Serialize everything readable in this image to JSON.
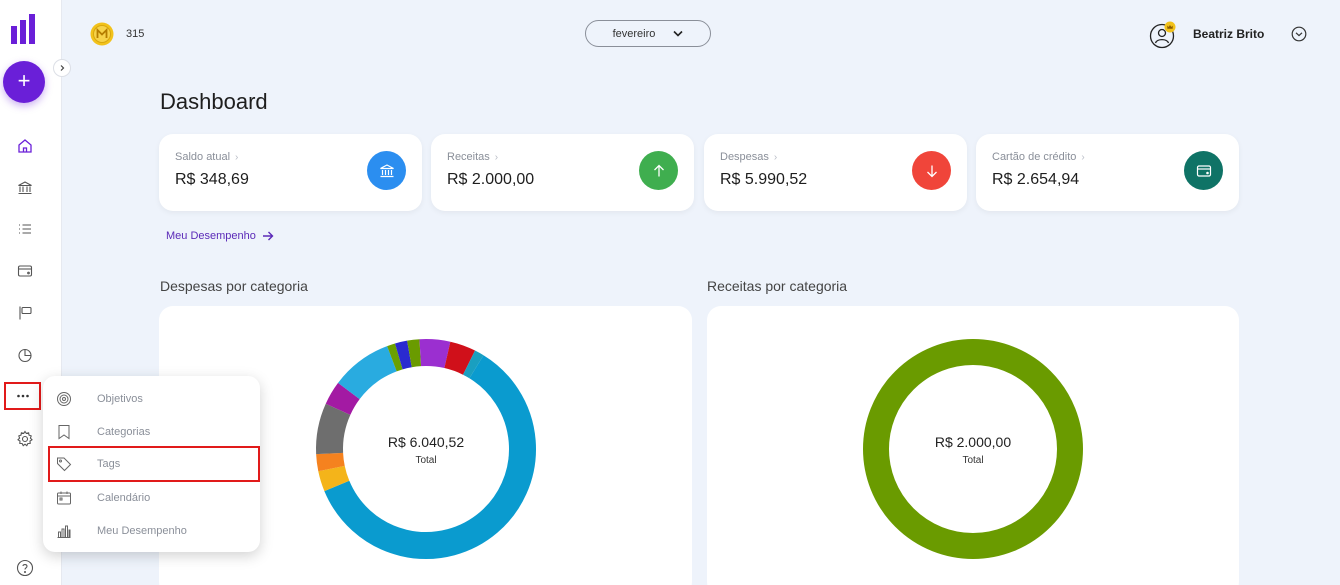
{
  "sidebar": {
    "add_label": "+",
    "nav": [
      "home-icon",
      "bank-icon",
      "list-icon",
      "wallet-icon",
      "flag-icon",
      "pie-chart-icon",
      "more-icon",
      "settings-icon",
      "help-icon"
    ]
  },
  "topbar": {
    "coins": "315",
    "month": "fevereiro",
    "user_name": "Beatriz Brito"
  },
  "page": {
    "title": "Dashboard"
  },
  "cards": [
    {
      "label": "Saldo atual",
      "value": "R$ 348,69",
      "color": "#2b8ef0",
      "icon": "bank-icon"
    },
    {
      "label": "Receitas",
      "value": "R$ 2.000,00",
      "color": "#3fae4f",
      "icon": "arrow-up-icon"
    },
    {
      "label": "Despesas",
      "value": "R$ 5.990,52",
      "color": "#f0453a",
      "icon": "arrow-down-icon"
    },
    {
      "label": "Cartão de crédito",
      "value": "R$ 2.654,94",
      "color": "#0f7366",
      "icon": "credit-card-icon"
    }
  ],
  "performance_link": "Meu Desempenho",
  "expenses_chart": {
    "title": "Despesas por categoria",
    "total": "R$ 6.040,52",
    "total_label": "Total"
  },
  "income_chart": {
    "title": "Receitas por categoria",
    "total": "R$ 2.000,00",
    "total_label": "Total"
  },
  "chart_data": [
    {
      "type": "pie",
      "title": "Despesas por categoria",
      "slices": [
        {
          "value": 0.6,
          "color": "#0a9bcf"
        },
        {
          "value": 0.03,
          "color": "#f4b41a"
        },
        {
          "value": 0.025,
          "color": "#f5821f"
        },
        {
          "value": 0.075,
          "color": "#6e6e6e"
        },
        {
          "value": 0.035,
          "color": "#a31aa3"
        },
        {
          "value": 0.09,
          "color": "#29abe0"
        },
        {
          "value": 0.012,
          "color": "#6aa000"
        },
        {
          "value": 0.018,
          "color": "#2a2ad0"
        },
        {
          "value": 0.018,
          "color": "#6a9b00"
        },
        {
          "value": 0.045,
          "color": "#9b2fd0"
        },
        {
          "value": 0.038,
          "color": "#d0101a"
        },
        {
          "value": 0.014,
          "color": "#1a9fc0"
        }
      ]
    },
    {
      "type": "pie",
      "title": "Receitas por categoria",
      "slices": [
        {
          "value": 1.0,
          "color": "#6a9b00"
        }
      ]
    }
  ],
  "popup_menu": [
    {
      "label": "Objetivos",
      "icon": "target-icon"
    },
    {
      "label": "Categorias",
      "icon": "bookmark-icon"
    },
    {
      "label": "Tags",
      "icon": "tag-icon"
    },
    {
      "label": "Calendário",
      "icon": "calendar-icon"
    },
    {
      "label": "Meu Desempenho",
      "icon": "bar-chart-icon"
    }
  ]
}
